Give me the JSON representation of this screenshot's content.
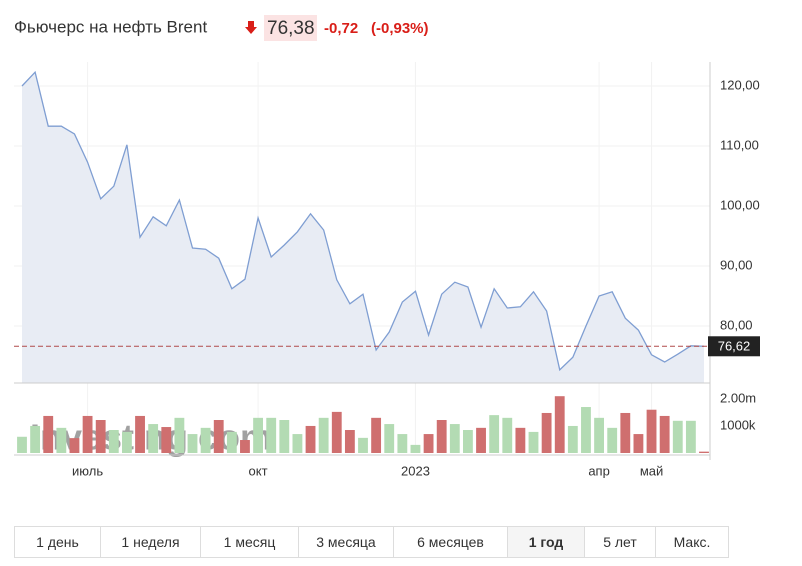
{
  "header": {
    "title": "Фьючерс на нефть Brent",
    "price": "76,38",
    "change": "-0,72",
    "change_percent": "(-0,93%)"
  },
  "chart_data": {
    "type": "line",
    "watermark": "Investing.com",
    "categories": [
      null,
      null,
      null,
      null,
      null,
      "июль",
      null,
      null,
      null,
      null,
      null,
      null,
      null,
      null,
      null,
      null,
      null,
      null,
      "окт",
      null,
      null,
      null,
      null,
      null,
      null,
      null,
      null,
      null,
      null,
      null,
      "2023",
      null,
      null,
      null,
      null,
      null,
      null,
      null,
      null,
      null,
      null,
      null,
      null,
      null,
      "апр",
      null,
      null,
      null,
      "май",
      null,
      null,
      null,
      null
    ],
    "values": [
      120,
      122.3,
      113.3,
      113.3,
      112,
      107.3,
      101.2,
      103.3,
      110.2,
      94.8,
      98.2,
      96.7,
      101,
      93,
      92.8,
      91.3,
      86.2,
      87.8,
      98,
      91.5,
      93.5,
      95.7,
      98.7,
      96,
      87.7,
      83.7,
      85.3,
      76,
      79,
      84,
      85.8,
      78.5,
      85.3,
      87.3,
      86.5,
      79.8,
      86.2,
      83,
      83.2,
      85.7,
      82.5,
      72.7,
      74.8,
      80,
      85,
      85.7,
      81.3,
      79.3,
      75.2,
      74,
      75.3,
      76.7,
      76.62
    ],
    "color": "#7f9ed2",
    "fill": "#e8ecf4",
    "ylim": [
      70.5,
      124
    ],
    "yticks": [
      {
        "value": 80,
        "label": "80,00"
      },
      {
        "value": 90,
        "label": "90,00"
      },
      {
        "value": 100,
        "label": "100,00"
      },
      {
        "value": 110,
        "label": "110,00"
      },
      {
        "value": 120,
        "label": "120,00"
      }
    ],
    "grid": true,
    "last_value": 76.62,
    "last_value_label": "76,62",
    "volume": {
      "type": "bar",
      "values": [
        600000,
        1000000,
        1370000,
        930000,
        550000,
        1370000,
        1220000,
        850000,
        780000,
        1370000,
        1070000,
        960000,
        1300000,
        700000,
        930000,
        1220000,
        780000,
        480000,
        1300000,
        1300000,
        1220000,
        700000,
        1000000,
        1300000,
        1520000,
        850000,
        560000,
        1300000,
        1070000,
        700000,
        300000,
        700000,
        1220000,
        1070000,
        850000,
        930000,
        1400000,
        1300000,
        930000,
        780000,
        1480000,
        2100000,
        1000000,
        1700000,
        1300000,
        930000,
        1480000,
        700000,
        1600000,
        1370000,
        1190000,
        1190000,
        50000
      ],
      "colors": [
        "#b3dbb3",
        "#b3dbb3",
        "#cf6f6f",
        "#b3dbb3",
        "#cf6f6f",
        "#cf6f6f",
        "#cf6f6f",
        "#b3dbb3",
        "#b3dbb3",
        "#cf6f6f",
        "#b3dbb3",
        "#cf6f6f",
        "#b3dbb3",
        "#b3dbb3",
        "#b3dbb3",
        "#cf6f6f",
        "#b3dbb3",
        "#cf6f6f",
        "#b3dbb3",
        "#b3dbb3",
        "#b3dbb3",
        "#b3dbb3",
        "#cf6f6f",
        "#b3dbb3",
        "#cf6f6f",
        "#cf6f6f",
        "#b3dbb3",
        "#cf6f6f",
        "#b3dbb3",
        "#b3dbb3",
        "#b3dbb3",
        "#cf6f6f",
        "#cf6f6f",
        "#b3dbb3",
        "#b3dbb3",
        "#cf6f6f",
        "#b3dbb3",
        "#b3dbb3",
        "#cf6f6f",
        "#b3dbb3",
        "#cf6f6f",
        "#cf6f6f",
        "#b3dbb3",
        "#b3dbb3",
        "#b3dbb3",
        "#b3dbb3",
        "#cf6f6f",
        "#cf6f6f",
        "#cf6f6f",
        "#cf6f6f",
        "#b3dbb3",
        "#b3dbb3",
        "#cf6f6f"
      ],
      "ylim": [
        0,
        2440000
      ],
      "yticks": [
        {
          "value": 1000000,
          "label": "1000k"
        },
        {
          "value": 2000000,
          "label": "2.00m"
        }
      ]
    }
  },
  "range_buttons": {
    "labels": [
      "1 день",
      "1 неделя",
      "1 месяц",
      "3 месяца",
      "6 месяцев",
      "1 год",
      "5 лет",
      "Макс."
    ],
    "active": 5
  }
}
